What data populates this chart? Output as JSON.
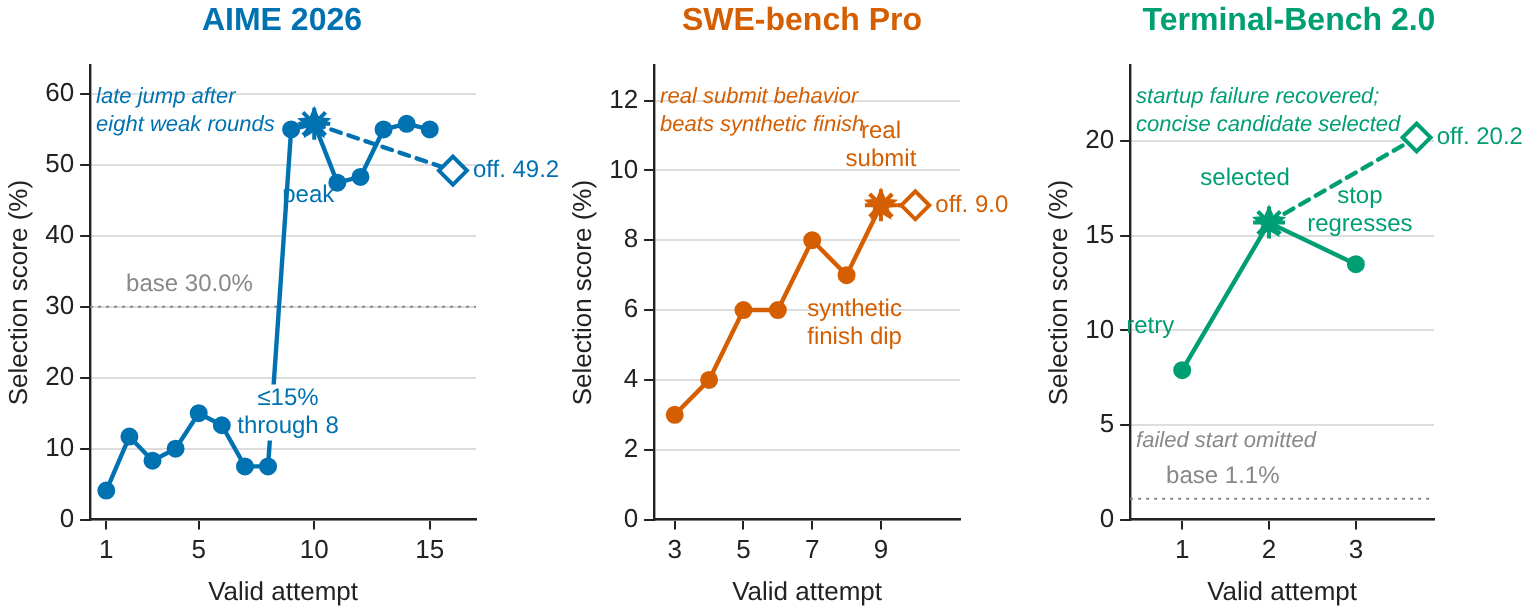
{
  "chart_data": [
    {
      "type": "line",
      "title": "AIME 2026",
      "xlabel": "Valid attempt",
      "ylabel": "Selection score (%)",
      "xlim": [
        0.3,
        17
      ],
      "xticks": [
        1,
        5,
        10,
        15
      ],
      "ylim": [
        0,
        64
      ],
      "yticks": [
        0,
        10,
        20,
        30,
        40,
        50,
        60
      ],
      "grid": "y",
      "legend": false,
      "series": [
        {
          "color": "#0072b2",
          "x": [
            1,
            2,
            3,
            4,
            5,
            6,
            7,
            8,
            9,
            10,
            11,
            12,
            13,
            14,
            15
          ],
          "values": [
            4.1,
            11.7,
            8.3,
            10,
            15,
            13.3,
            7.5,
            7.5,
            55,
            55.8,
            47.5,
            48.3,
            55,
            55.8,
            55
          ],
          "marker": "circle"
        },
        {
          "type": "line",
          "color": "#0072b2",
          "x": [
            10,
            16
          ],
          "values": [
            55.8,
            49.2
          ],
          "line_style": "dashed"
        },
        {
          "type": "scatter",
          "color": "#0072b2",
          "x": [
            16
          ],
          "values": [
            49.2
          ],
          "marker": "diamond"
        },
        {
          "type": "scatter",
          "color": "#0072b2",
          "x": [
            10
          ],
          "values": [
            55.8
          ],
          "marker": "star"
        }
      ],
      "ref_lines": [
        {
          "axis": "y",
          "value": 30,
          "label": "base 30.0%",
          "color": "#888888",
          "line_style": "dotted"
        }
      ],
      "annotations": [
        "late jump after\neight weak rounds",
        {
          "text": "peak",
          "x": 10,
          "y": 55.8
        },
        {
          "text": "≤15%\nthrough 8",
          "x": 8,
          "y": 7.5
        },
        {
          "text": "off. 49.2",
          "x": 16,
          "y": 49.2
        }
      ]
    },
    {
      "type": "line",
      "title": "SWE-bench Pro",
      "xlabel": "Valid attempt",
      "ylabel": "Selection score (%)",
      "xlim": [
        2.4,
        11.3
      ],
      "xticks": [
        3,
        5,
        7,
        9
      ],
      "ylim": [
        0,
        13
      ],
      "yticks": [
        0,
        2,
        4,
        6,
        8,
        10,
        12
      ],
      "grid": "y",
      "legend": false,
      "series": [
        {
          "color": "#d55e00",
          "x": [
            3,
            4,
            5,
            6,
            7,
            8,
            9
          ],
          "values": [
            3,
            4,
            6,
            6,
            8,
            7,
            9
          ],
          "marker": "circle"
        },
        {
          "type": "line",
          "color": "#d55e00",
          "x": [
            9,
            10
          ],
          "values": [
            9,
            9
          ],
          "line_style": "dashed"
        },
        {
          "type": "scatter",
          "color": "#d55e00",
          "x": [
            10
          ],
          "values": [
            9
          ],
          "marker": "diamond"
        },
        {
          "type": "scatter",
          "color": "#d55e00",
          "x": [
            9
          ],
          "values": [
            9
          ],
          "marker": "star"
        }
      ],
      "annotations": [
        "real submit behavior\nbeats synthetic finish",
        {
          "text": "real\nsubmit",
          "x": 9,
          "y": 9
        },
        {
          "text": "synthetic\nfinish dip",
          "x": 8,
          "y": 7
        },
        {
          "text": "off. 9.0",
          "x": 10,
          "y": 9
        }
      ]
    },
    {
      "type": "line",
      "title": "Terminal-Bench 2.0",
      "xlabel": "Valid attempt",
      "ylabel": "Selection score (%)",
      "xlim": [
        0.4,
        3.9
      ],
      "xticks": [
        1,
        2,
        3
      ],
      "ylim": [
        0,
        24
      ],
      "yticks": [
        0,
        5,
        10,
        15,
        20
      ],
      "grid": "y",
      "legend": false,
      "series": [
        {
          "color": "#009e73",
          "x": [
            1,
            2,
            3
          ],
          "values": [
            7.9,
            15.7,
            13.5
          ],
          "marker": "circle"
        },
        {
          "type": "line",
          "color": "#009e73",
          "x": [
            2,
            3.7
          ],
          "values": [
            15.7,
            20.2
          ],
          "line_style": "dashed"
        },
        {
          "type": "scatter",
          "color": "#009e73",
          "x": [
            3.7
          ],
          "values": [
            20.2
          ],
          "marker": "diamond"
        },
        {
          "type": "scatter",
          "color": "#009e73",
          "x": [
            2
          ],
          "values": [
            15.7
          ],
          "marker": "star"
        }
      ],
      "ref_lines": [
        {
          "axis": "y",
          "value": 1.1,
          "label": "base 1.1%",
          "color": "#888888",
          "line_style": "dotted"
        }
      ],
      "annotations": [
        "startup failure recovered;\nconcise candidate selected",
        "failed start omitted",
        {
          "text": "retry",
          "x": 1,
          "y": 7.9
        },
        {
          "text": "selected",
          "x": 2,
          "y": 15.7
        },
        {
          "text": "stop\nregresses",
          "x": 3,
          "y": 13.5
        },
        {
          "text": "off. 20.2",
          "x": 3.7,
          "y": 20.2
        }
      ]
    }
  ]
}
